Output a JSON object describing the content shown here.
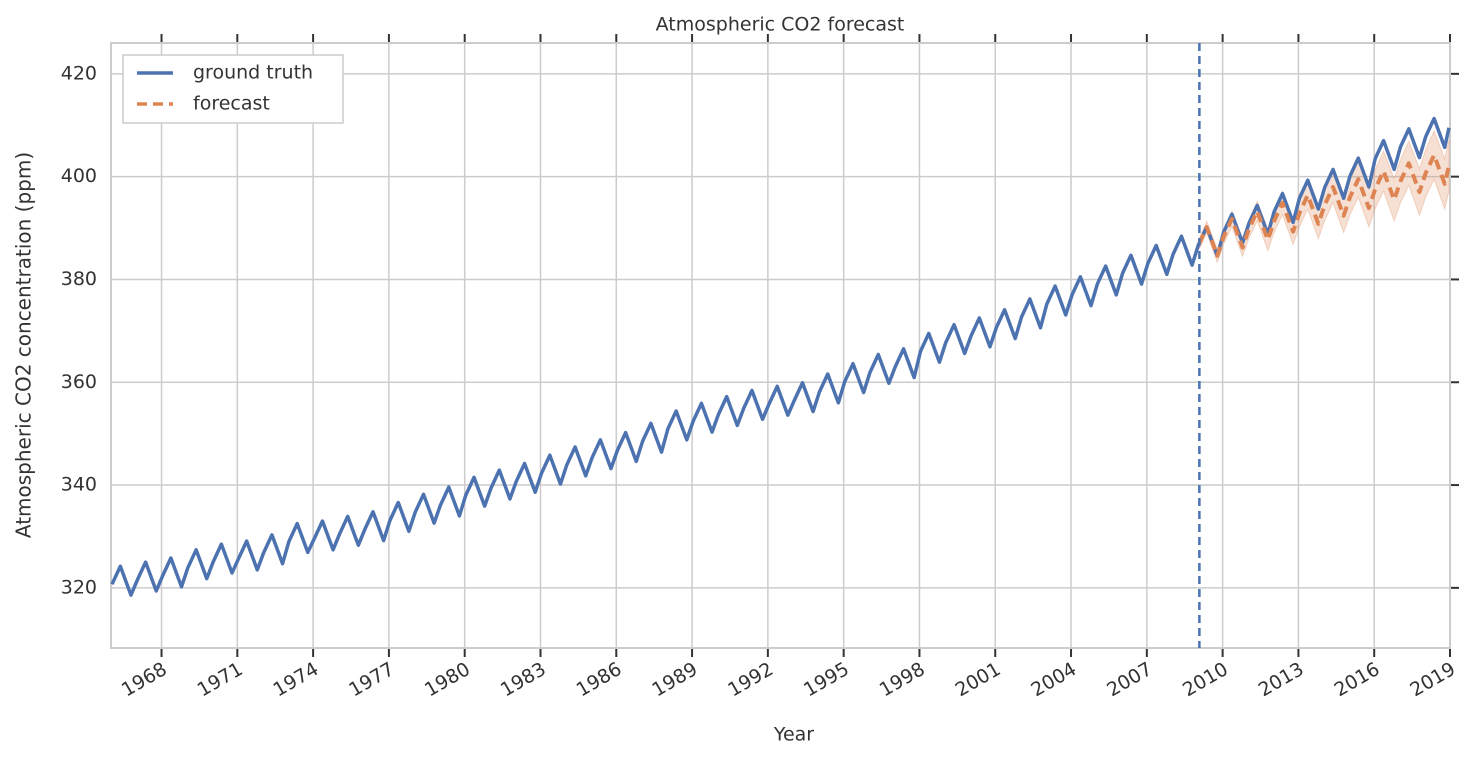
{
  "chart_data": {
    "type": "line",
    "title": "Atmospheric CO2 forecast",
    "xlabel": "Year",
    "ylabel": "Atmospheric CO2 concentration (ppm)",
    "xlim": [
      1966.0,
      2019.0
    ],
    "xticks": [
      1968,
      1971,
      1974,
      1977,
      1980,
      1983,
      1986,
      1989,
      1992,
      1995,
      1998,
      2001,
      2004,
      2007,
      2010,
      2013,
      2016,
      2019
    ],
    "ylim": [
      308.3,
      426.0
    ],
    "yticks": [
      320,
      340,
      360,
      380,
      400,
      420
    ],
    "grid": true,
    "legend": "upper left",
    "vline": 2009.08,
    "vline_color": "#4c72b0",
    "series": [
      {
        "name": "ground truth",
        "color": "#4c72b0",
        "style": "solid",
        "x": [
          1966.04,
          1966.37,
          1966.79,
          1967.04,
          1967.37,
          1967.79,
          1968.04,
          1968.37,
          1968.79,
          1969.04,
          1969.37,
          1969.79,
          1970.04,
          1970.37,
          1970.79,
          1971.04,
          1971.37,
          1971.79,
          1972.04,
          1972.37,
          1972.79,
          1973.04,
          1973.37,
          1973.79,
          1974.04,
          1974.37,
          1974.79,
          1975.04,
          1975.37,
          1975.79,
          1976.04,
          1976.37,
          1976.79,
          1977.04,
          1977.37,
          1977.79,
          1978.04,
          1978.37,
          1978.79,
          1979.04,
          1979.37,
          1979.79,
          1980.04,
          1980.37,
          1980.79,
          1981.04,
          1981.37,
          1981.79,
          1982.04,
          1982.37,
          1982.79,
          1983.04,
          1983.37,
          1983.79,
          1984.04,
          1984.37,
          1984.79,
          1985.04,
          1985.37,
          1985.79,
          1986.04,
          1986.37,
          1986.79,
          1987.04,
          1987.37,
          1987.79,
          1988.04,
          1988.37,
          1988.79,
          1989.04,
          1989.37,
          1989.79,
          1990.04,
          1990.37,
          1990.79,
          1991.04,
          1991.37,
          1991.79,
          1992.04,
          1992.37,
          1992.79,
          1993.04,
          1993.37,
          1993.79,
          1994.04,
          1994.37,
          1994.79,
          1995.04,
          1995.37,
          1995.79,
          1996.04,
          1996.37,
          1996.79,
          1997.04,
          1997.37,
          1997.79,
          1998.04,
          1998.37,
          1998.79,
          1999.04,
          1999.37,
          1999.79,
          2000.04,
          2000.37,
          2000.79,
          2001.04,
          2001.37,
          2001.79,
          2002.04,
          2002.37,
          2002.79,
          2003.04,
          2003.37,
          2003.79,
          2004.04,
          2004.37,
          2004.79,
          2005.04,
          2005.37,
          2005.79,
          2006.04,
          2006.37,
          2006.79,
          2007.04,
          2007.37,
          2007.79,
          2008.04,
          2008.37,
          2008.79,
          2009.04,
          2009.37,
          2009.79,
          2010.04,
          2010.37,
          2010.79,
          2011.04,
          2011.37,
          2011.79,
          2012.04,
          2012.37,
          2012.79,
          2013.04,
          2013.37,
          2013.79,
          2014.04,
          2014.37,
          2014.79,
          2015.04,
          2015.37,
          2015.79,
          2016.04,
          2016.37,
          2016.79,
          2017.04,
          2017.37,
          2017.79,
          2018.04,
          2018.37,
          2018.79,
          2018.96
        ],
        "values": [
          320.7,
          324.2,
          318.6,
          321.5,
          325.0,
          319.4,
          322.3,
          325.8,
          320.2,
          323.9,
          327.4,
          321.8,
          325.0,
          328.5,
          322.9,
          325.6,
          329.1,
          323.5,
          326.8,
          330.3,
          324.7,
          329.0,
          332.5,
          326.9,
          329.5,
          333.0,
          327.4,
          330.4,
          333.9,
          328.3,
          331.3,
          334.8,
          329.2,
          333.1,
          336.6,
          331.0,
          334.7,
          338.2,
          332.6,
          336.1,
          339.6,
          334.0,
          338.0,
          341.5,
          335.9,
          339.4,
          342.9,
          337.3,
          340.7,
          344.2,
          338.6,
          342.3,
          345.8,
          340.2,
          343.9,
          347.4,
          341.8,
          345.3,
          348.8,
          343.2,
          346.7,
          350.2,
          344.6,
          348.5,
          352.0,
          346.4,
          350.9,
          354.4,
          348.8,
          352.4,
          355.9,
          350.3,
          353.7,
          357.2,
          351.6,
          354.9,
          358.4,
          352.8,
          355.7,
          359.2,
          353.6,
          356.4,
          359.9,
          354.3,
          358.1,
          361.6,
          356.0,
          360.1,
          363.6,
          358.0,
          361.9,
          365.4,
          359.8,
          363.0,
          366.5,
          360.9,
          366.0,
          369.5,
          363.9,
          367.7,
          371.2,
          365.6,
          369.0,
          372.5,
          366.9,
          370.6,
          374.1,
          368.5,
          372.7,
          376.2,
          370.6,
          375.2,
          378.7,
          373.1,
          377.0,
          380.5,
          374.9,
          379.1,
          382.6,
          377.0,
          381.2,
          384.7,
          379.1,
          383.1,
          386.6,
          381.0,
          384.9,
          388.4,
          382.8,
          386.7,
          390.2,
          384.6,
          389.2,
          392.7,
          387.1,
          390.9,
          394.4,
          388.8,
          393.2,
          396.7,
          391.1,
          395.8,
          399.3,
          393.7,
          397.9,
          401.4,
          395.8,
          400.1,
          403.6,
          398.0,
          403.5,
          407.0,
          401.4,
          405.8,
          409.3,
          403.7,
          407.8,
          411.3,
          405.7,
          409.5
        ]
      },
      {
        "name": "forecast",
        "color": "#dd8452",
        "style": "dashed",
        "x": [
          2009.08,
          2009.37,
          2009.79,
          2010.04,
          2010.37,
          2010.79,
          2011.04,
          2011.37,
          2011.79,
          2012.04,
          2012.37,
          2012.79,
          2013.04,
          2013.37,
          2013.79,
          2014.04,
          2014.37,
          2014.79,
          2015.04,
          2015.37,
          2015.79,
          2016.04,
          2016.37,
          2016.79,
          2017.04,
          2017.37,
          2017.79,
          2018.04,
          2018.37,
          2018.79,
          2018.96
        ],
        "values": [
          387.0,
          390.2,
          384.6,
          388.3,
          391.8,
          386.2,
          389.8,
          393.3,
          387.7,
          391.4,
          394.9,
          389.3,
          392.9,
          396.4,
          390.8,
          394.5,
          398.0,
          392.4,
          396.0,
          399.5,
          393.9,
          397.6,
          401.1,
          395.5,
          399.1,
          402.6,
          397.0,
          400.7,
          404.2,
          398.6,
          402.2
        ],
        "errors": [
          1.0,
          1.1,
          1.3,
          1.4,
          1.5,
          1.7,
          1.8,
          1.9,
          2.1,
          2.2,
          2.3,
          2.5,
          2.6,
          2.7,
          2.9,
          3.0,
          3.1,
          3.3,
          3.4,
          3.5,
          3.7,
          3.8,
          3.9,
          4.1,
          4.2,
          4.3,
          4.5,
          4.6,
          4.7,
          4.9,
          5.0
        ]
      }
    ]
  }
}
